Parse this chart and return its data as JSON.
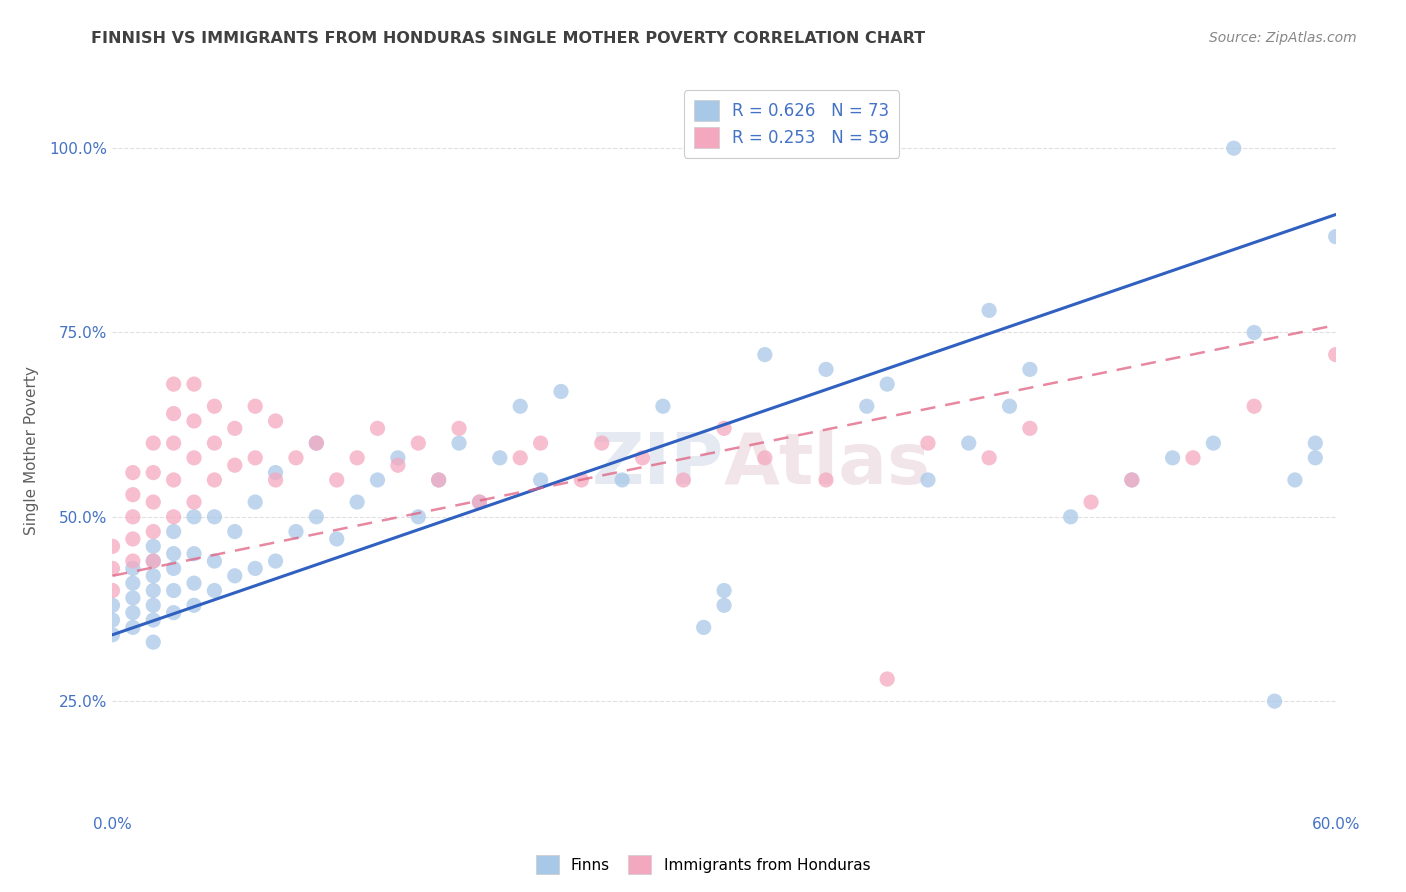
{
  "title": "FINNISH VS IMMIGRANTS FROM HONDURAS SINGLE MOTHER POVERTY CORRELATION CHART",
  "source": "Source: ZipAtlas.com",
  "ylabel": "Single Mother Poverty",
  "xlim": [
    0.0,
    0.6
  ],
  "ylim": [
    0.1,
    1.08
  ],
  "ytick_values": [
    0.25,
    0.5,
    0.75,
    1.0
  ],
  "legend_label1": "Finns",
  "legend_label2": "Immigrants from Honduras",
  "r1": 0.626,
  "n1": 73,
  "r2": 0.253,
  "n2": 59,
  "color1": "#a8c8e8",
  "color2": "#f4a8c0",
  "line_color1": "#3060c0",
  "line_color2": "#e06080",
  "background_color": "#ffffff",
  "grid_color": "#e0e0e0",
  "title_color": "#404040",
  "axis_label_color": "#606060",
  "tick_color": "#4472c4",
  "line1_x0": 0.0,
  "line1_y0": 0.34,
  "line1_x1": 0.6,
  "line1_y1": 0.91,
  "line2_x0": 0.0,
  "line2_y0": 0.42,
  "line2_x1": 0.6,
  "line2_y1": 0.76,
  "scatter1_x": [
    0.0,
    0.0,
    0.0,
    0.01,
    0.01,
    0.01,
    0.01,
    0.01,
    0.02,
    0.02,
    0.02,
    0.02,
    0.02,
    0.02,
    0.02,
    0.03,
    0.03,
    0.03,
    0.03,
    0.03,
    0.04,
    0.04,
    0.04,
    0.04,
    0.05,
    0.05,
    0.05,
    0.06,
    0.06,
    0.07,
    0.07,
    0.08,
    0.08,
    0.09,
    0.1,
    0.1,
    0.11,
    0.12,
    0.13,
    0.14,
    0.15,
    0.16,
    0.17,
    0.18,
    0.19,
    0.2,
    0.21,
    0.22,
    0.25,
    0.27,
    0.29,
    0.3,
    0.3,
    0.32,
    0.35,
    0.37,
    0.38,
    0.4,
    0.42,
    0.43,
    0.44,
    0.45,
    0.47,
    0.5,
    0.52,
    0.54,
    0.55,
    0.56,
    0.57,
    0.58,
    0.59,
    0.59,
    0.6
  ],
  "scatter1_y": [
    0.34,
    0.36,
    0.38,
    0.35,
    0.37,
    0.39,
    0.41,
    0.43,
    0.33,
    0.36,
    0.38,
    0.4,
    0.42,
    0.44,
    0.46,
    0.37,
    0.4,
    0.43,
    0.45,
    0.48,
    0.38,
    0.41,
    0.45,
    0.5,
    0.4,
    0.44,
    0.5,
    0.42,
    0.48,
    0.43,
    0.52,
    0.44,
    0.56,
    0.48,
    0.5,
    0.6,
    0.47,
    0.52,
    0.55,
    0.58,
    0.5,
    0.55,
    0.6,
    0.52,
    0.58,
    0.65,
    0.55,
    0.67,
    0.55,
    0.65,
    0.35,
    0.38,
    0.4,
    0.72,
    0.7,
    0.65,
    0.68,
    0.55,
    0.6,
    0.78,
    0.65,
    0.7,
    0.5,
    0.55,
    0.58,
    0.6,
    1.0,
    0.75,
    0.25,
    0.55,
    0.58,
    0.6,
    0.88
  ],
  "scatter2_x": [
    0.0,
    0.0,
    0.0,
    0.01,
    0.01,
    0.01,
    0.01,
    0.01,
    0.02,
    0.02,
    0.02,
    0.02,
    0.02,
    0.03,
    0.03,
    0.03,
    0.03,
    0.03,
    0.04,
    0.04,
    0.04,
    0.04,
    0.05,
    0.05,
    0.05,
    0.06,
    0.06,
    0.07,
    0.07,
    0.08,
    0.08,
    0.09,
    0.1,
    0.11,
    0.12,
    0.13,
    0.14,
    0.15,
    0.16,
    0.17,
    0.18,
    0.2,
    0.21,
    0.23,
    0.24,
    0.26,
    0.28,
    0.3,
    0.32,
    0.35,
    0.38,
    0.4,
    0.43,
    0.45,
    0.48,
    0.5,
    0.53,
    0.56,
    0.6
  ],
  "scatter2_y": [
    0.4,
    0.43,
    0.46,
    0.44,
    0.47,
    0.5,
    0.53,
    0.56,
    0.44,
    0.48,
    0.52,
    0.56,
    0.6,
    0.5,
    0.55,
    0.6,
    0.64,
    0.68,
    0.52,
    0.58,
    0.63,
    0.68,
    0.55,
    0.6,
    0.65,
    0.57,
    0.62,
    0.58,
    0.65,
    0.55,
    0.63,
    0.58,
    0.6,
    0.55,
    0.58,
    0.62,
    0.57,
    0.6,
    0.55,
    0.62,
    0.52,
    0.58,
    0.6,
    0.55,
    0.6,
    0.58,
    0.55,
    0.62,
    0.58,
    0.55,
    0.28,
    0.6,
    0.58,
    0.62,
    0.52,
    0.55,
    0.58,
    0.65,
    0.72
  ]
}
